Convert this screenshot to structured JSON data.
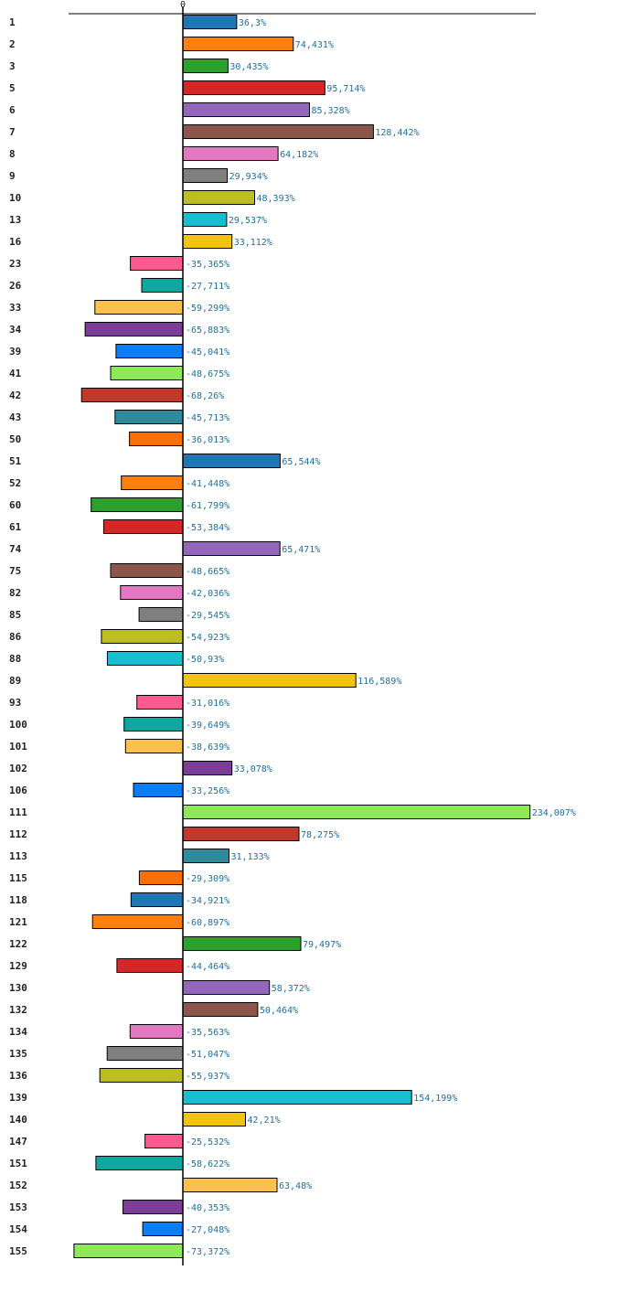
{
  "chart_data": {
    "type": "bar",
    "orientation": "horizontal",
    "title": "",
    "xlabel": "",
    "ylabel": "",
    "zero_label": "0",
    "highlight_category": "74",
    "highlight_color": "#cc0000",
    "xlim": [
      -100,
      270
    ],
    "colors": [
      "#1f77b4",
      "#ff7f0e",
      "#2ca02c",
      "#d62728",
      "#9467bd",
      "#8c564b",
      "#e377c2",
      "#7f7f7f",
      "#bcbd22",
      "#17becf",
      "#f1c40f",
      "#ff5c8d",
      "#0fa8a0",
      "#ffc04d",
      "#7d3c98",
      "#0a7ef7",
      "#8ee858",
      "#c0392b",
      "#2e8b9e",
      "#ff7000"
    ],
    "categories": [
      "1",
      "2",
      "3",
      "5",
      "6",
      "7",
      "8",
      "9",
      "10",
      "13",
      "16",
      "23",
      "26",
      "33",
      "34",
      "39",
      "41",
      "42",
      "43",
      "50",
      "51",
      "52",
      "60",
      "61",
      "74",
      "75",
      "82",
      "85",
      "86",
      "88",
      "89",
      "93",
      "100",
      "101",
      "102",
      "106",
      "111",
      "112",
      "113",
      "115",
      "118",
      "121",
      "122",
      "129",
      "130",
      "132",
      "134",
      "135",
      "136",
      "139",
      "140",
      "147",
      "151",
      "152",
      "153",
      "154",
      "155"
    ],
    "values": [
      36.3,
      74.431,
      30.435,
      95.714,
      85.328,
      128.442,
      64.182,
      29.934,
      48.393,
      29.537,
      33.112,
      -35.365,
      -27.711,
      -59.299,
      -65.883,
      -45.041,
      -48.675,
      -68.26,
      -45.713,
      -36.013,
      65.544,
      -41.448,
      -61.799,
      -53.384,
      65.471,
      -48.665,
      -42.036,
      -29.545,
      -54.923,
      -50.93,
      116.589,
      -31.016,
      -39.649,
      -38.639,
      33.078,
      -33.256,
      234.007,
      78.275,
      31.133,
      -29.309,
      -34.921,
      -60.897,
      79.497,
      -44.464,
      58.372,
      50.464,
      -35.563,
      -51.047,
      -55.937,
      154.199,
      42.21,
      -25.532,
      -58.622,
      63.48,
      -40.353,
      -27.048,
      -73.372
    ],
    "value_labels": [
      "36,3%",
      "74,431%",
      "30,435%",
      "95,714%",
      "85,328%",
      "128,442%",
      "64,182%",
      "29,934%",
      "48,393%",
      "29,537%",
      "33,112%",
      "-35,365%",
      "-27,711%",
      "-59,299%",
      "-65,883%",
      "-45,041%",
      "-48,675%",
      "-68,26%",
      "-45,713%",
      "-36,013%",
      "65,544%",
      "-41,448%",
      "-61,799%",
      "-53,384%",
      "65,471%",
      "-48,665%",
      "-42,036%",
      "-29,545%",
      "-54,923%",
      "-50,93%",
      "116,589%",
      "-31,016%",
      "-39,649%",
      "-38,639%",
      "33,078%",
      "-33,256%",
      "234,007%",
      "78,275%",
      "31,133%",
      "-29,309%",
      "-34,921%",
      "-60,897%",
      "79,497%",
      "-44,464%",
      "58,372%",
      "50,464%",
      "-35,563%",
      "-51,047%",
      "-55,937%",
      "154,199%",
      "42,21%",
      "-25,532%",
      "-58,622%",
      "63,48%",
      "-40,353%",
      "-27,048%",
      "-73,372%"
    ]
  }
}
